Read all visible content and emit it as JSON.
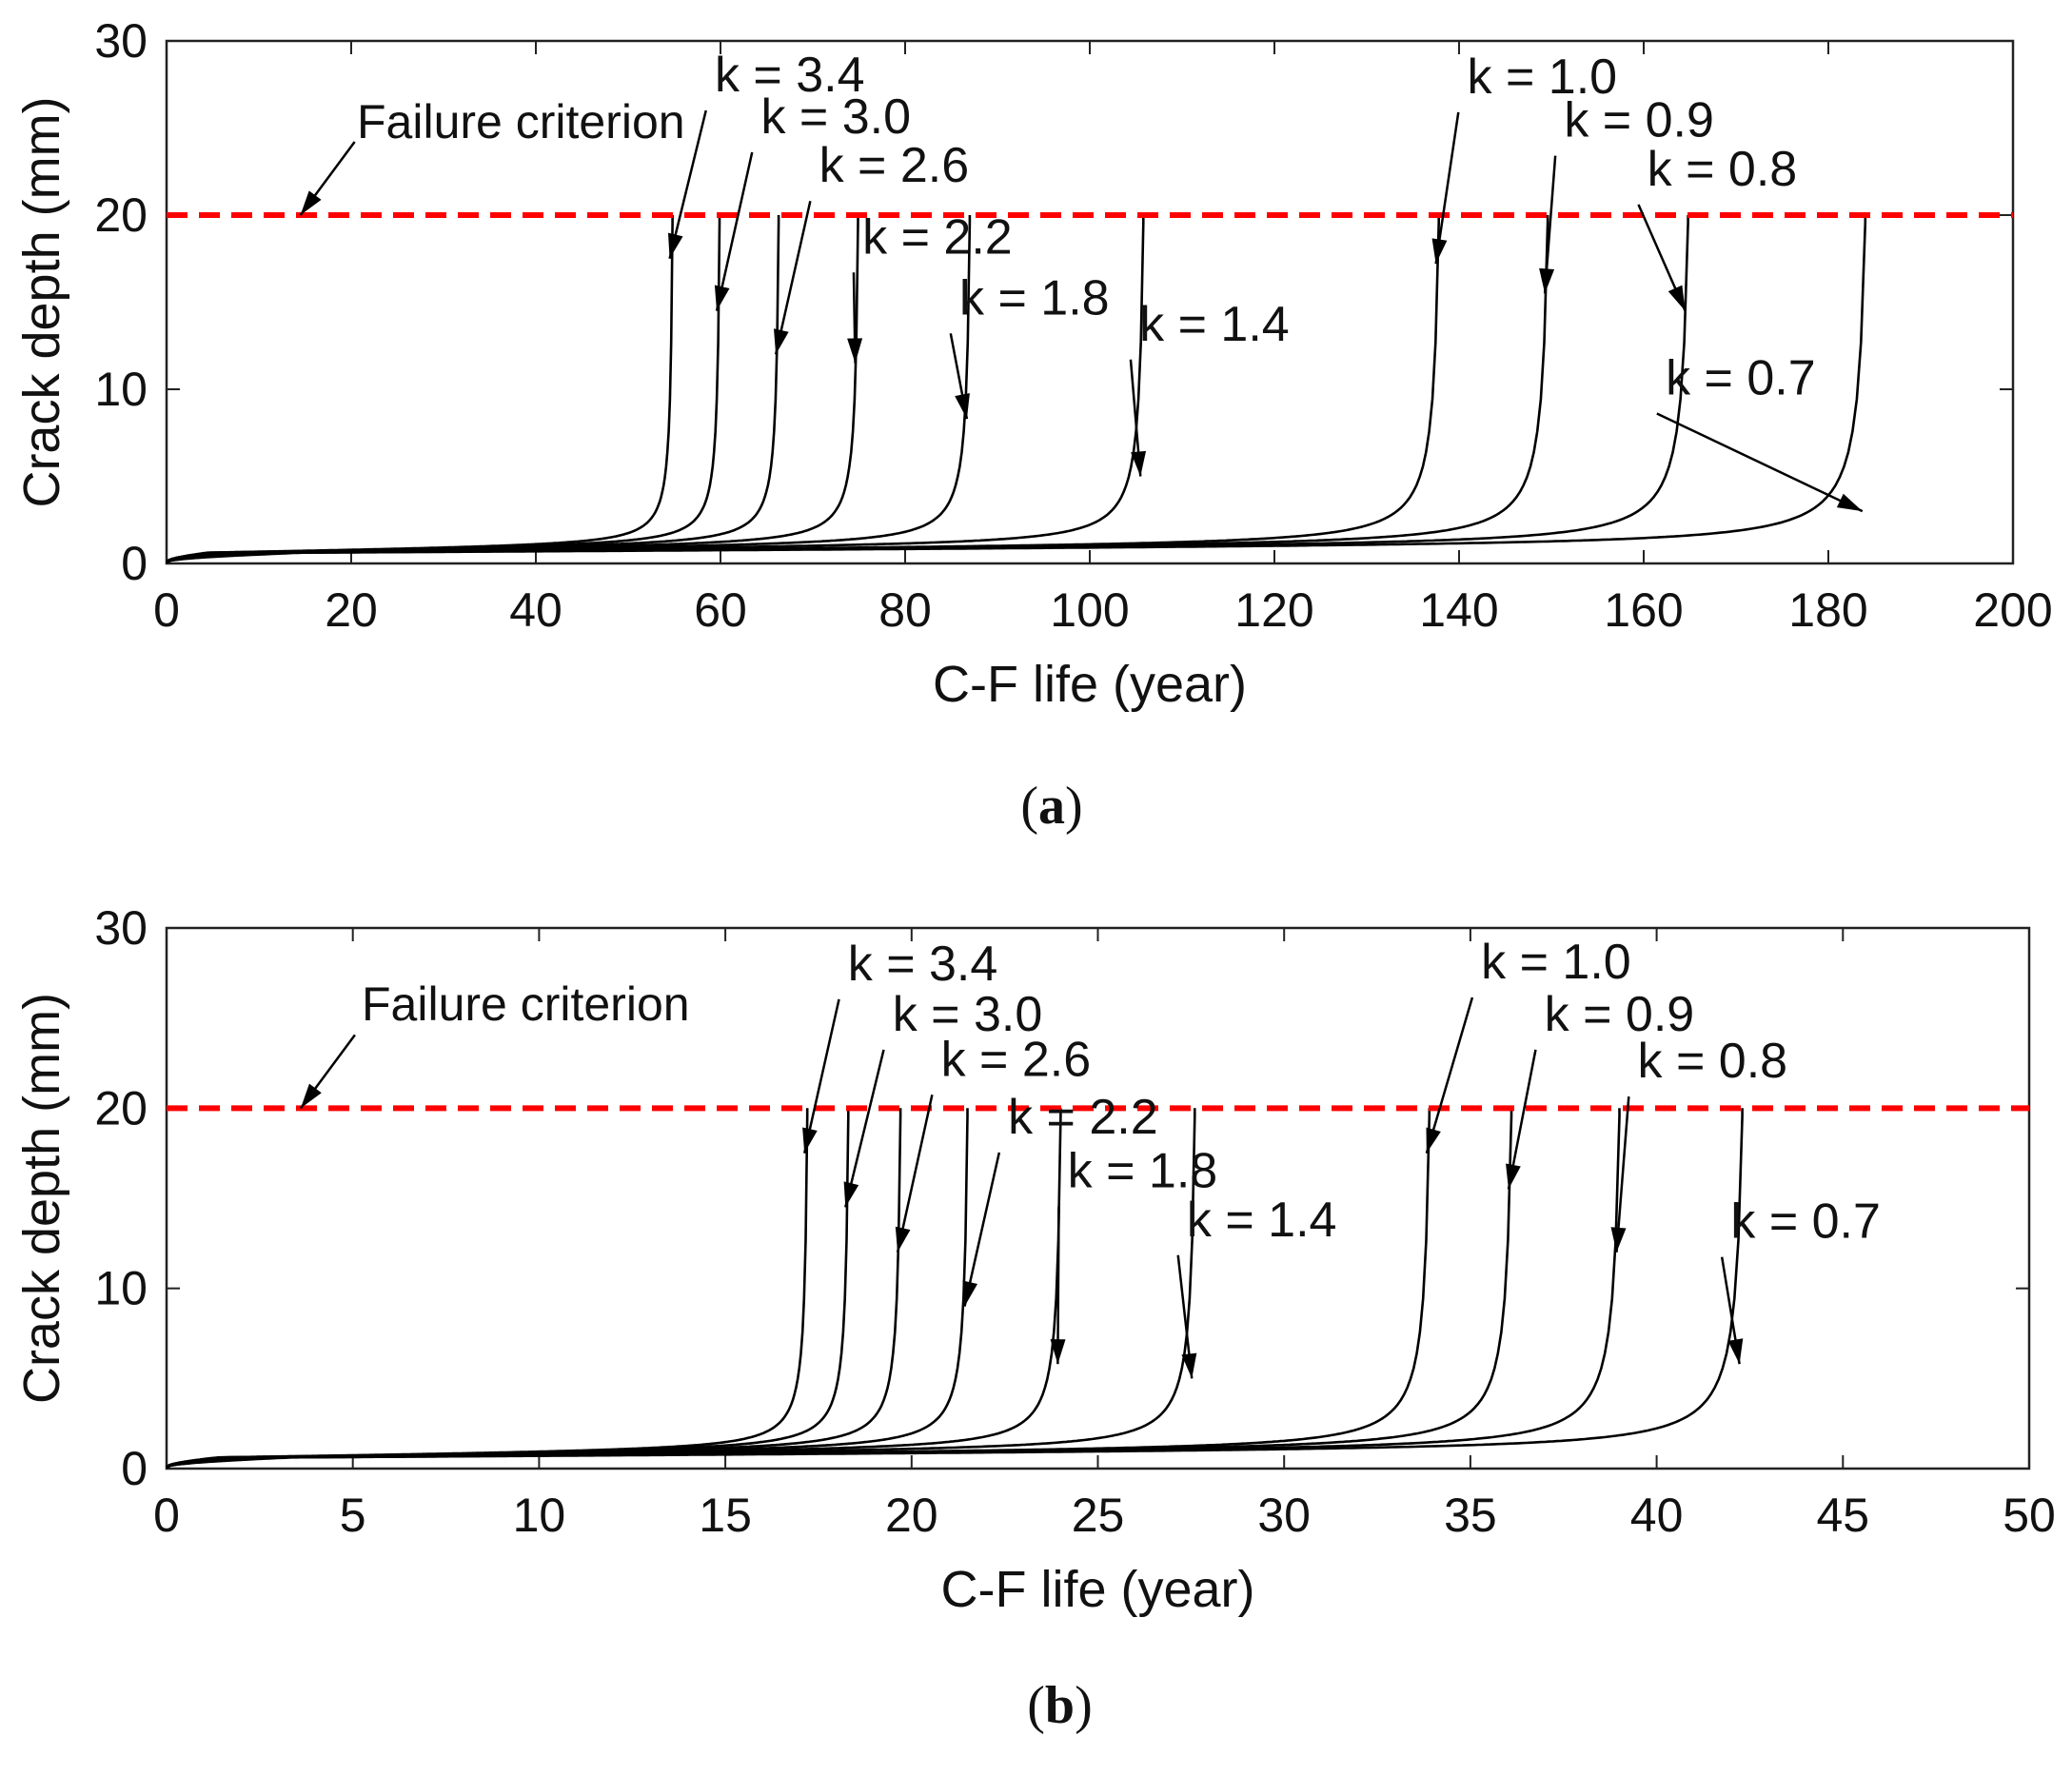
{
  "chart_data": [
    {
      "type": "line",
      "panel_label": "a",
      "xlabel": "C-F life (year)",
      "ylabel": "Crack depth (mm)",
      "xlim": [
        0,
        200
      ],
      "ylim": [
        0,
        30
      ],
      "xticks": [
        0,
        20,
        40,
        60,
        80,
        100,
        120,
        140,
        160,
        180,
        200
      ],
      "yticks": [
        0,
        10,
        20,
        30
      ],
      "grid": false,
      "failure_criterion": {
        "label": "Failure criterion",
        "y": 20,
        "color": "#ff0000",
        "style": "dashed",
        "arrow_target_x": 14.5
      },
      "series": [
        {
          "name": "k = 3.4",
          "failure_life": 54.8,
          "label_x": 67.5,
          "label_y": 27.1,
          "arrow_y": 17.5
        },
        {
          "name": "k = 3.0",
          "failure_life": 59.9,
          "label_x": 72.5,
          "label_y": 24.7,
          "arrow_y": 14.5
        },
        {
          "name": "k = 2.6",
          "failure_life": 66.3,
          "label_x": 78.8,
          "label_y": 21.9,
          "arrow_y": 12.0
        },
        {
          "name": "k = 2.2",
          "failure_life": 74.9,
          "label_x": 83.5,
          "label_y": 17.8,
          "arrow_y": 11.5
        },
        {
          "name": "k = 1.8",
          "failure_life": 87.0,
          "label_x": 94.0,
          "label_y": 14.3,
          "arrow_y": 8.3
        },
        {
          "name": "k = 1.4",
          "failure_life": 105.8,
          "label_x": 113.5,
          "label_y": 12.8,
          "arrow_y": 5.0
        },
        {
          "name": "k = 1.0",
          "failure_life": 137.8,
          "label_x": 149.0,
          "label_y": 27.0,
          "arrow_y": 17.2
        },
        {
          "name": "k = 0.9",
          "failure_life": 149.6,
          "label_x": 159.5,
          "label_y": 24.5,
          "arrow_y": 15.5
        },
        {
          "name": "k = 0.8",
          "failure_life": 164.8,
          "label_x": 168.5,
          "label_y": 21.7,
          "arrow_y": 14.5
        },
        {
          "name": "k = 0.7",
          "failure_life": 184.0,
          "label_x": 170.5,
          "label_y": 9.7,
          "arrow_y": 3.0
        }
      ]
    },
    {
      "type": "line",
      "panel_label": "b",
      "xlabel": "C-F life (year)",
      "ylabel": "Crack depth (mm)",
      "xlim": [
        0,
        50
      ],
      "ylim": [
        0,
        30
      ],
      "xticks": [
        0,
        5,
        10,
        15,
        20,
        25,
        30,
        35,
        40,
        45,
        50
      ],
      "yticks": [
        0,
        10,
        20,
        30
      ],
      "grid": false,
      "failure_criterion": {
        "label": "Failure criterion",
        "y": 20,
        "color": "#ff0000",
        "style": "dashed",
        "arrow_target_x": 3.6
      },
      "series": [
        {
          "name": "k = 3.4",
          "failure_life": 17.2,
          "label_x": 20.3,
          "label_y": 27.1,
          "arrow_y": 17.5
        },
        {
          "name": "k = 3.0",
          "failure_life": 18.3,
          "label_x": 21.5,
          "label_y": 24.3,
          "arrow_y": 14.5
        },
        {
          "name": "k = 2.6",
          "failure_life": 19.7,
          "label_x": 22.8,
          "label_y": 21.8,
          "arrow_y": 12.0
        },
        {
          "name": "k = 2.2",
          "failure_life": 21.5,
          "label_x": 24.6,
          "label_y": 18.6,
          "arrow_y": 9.0
        },
        {
          "name": "k = 1.8",
          "failure_life": 24.0,
          "label_x": 26.2,
          "label_y": 15.6,
          "arrow_y": 5.8
        },
        {
          "name": "k = 1.4",
          "failure_life": 27.6,
          "label_x": 29.4,
          "label_y": 12.9,
          "arrow_y": 5.0
        },
        {
          "name": "k = 1.0",
          "failure_life": 33.9,
          "label_x": 37.3,
          "label_y": 27.2,
          "arrow_y": 17.5
        },
        {
          "name": "k = 0.9",
          "failure_life": 36.1,
          "label_x": 39.0,
          "label_y": 24.3,
          "arrow_y": 15.5
        },
        {
          "name": "k = 0.8",
          "failure_life": 39.0,
          "label_x": 41.5,
          "label_y": 21.7,
          "arrow_y": 12.0
        },
        {
          "name": "k = 0.7",
          "failure_life": 42.3,
          "label_x": 44.0,
          "label_y": 12.8,
          "arrow_y": 5.8
        }
      ]
    }
  ]
}
